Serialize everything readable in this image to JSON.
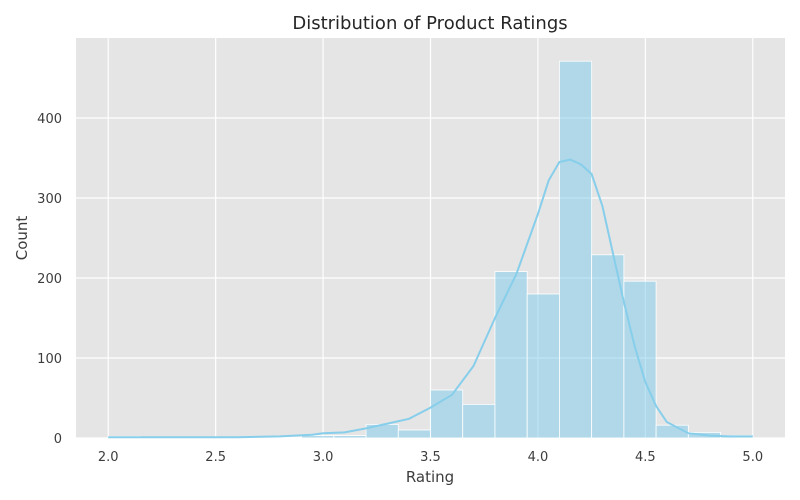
{
  "chart_data": {
    "type": "bar",
    "subtype": "histogram-with-kde",
    "title": "Distribution of Product Ratings",
    "xlabel": "Rating",
    "ylabel": "Count",
    "xlim": [
      1.85,
      5.15
    ],
    "ylim": [
      0,
      500
    ],
    "x_ticks": [
      2.0,
      2.5,
      3.0,
      3.5,
      4.0,
      4.5,
      5.0
    ],
    "x_tick_labels": [
      "2.0",
      "2.5",
      "3.0",
      "3.5",
      "4.0",
      "4.5",
      "5.0"
    ],
    "y_ticks": [
      0,
      100,
      200,
      300,
      400
    ],
    "y_tick_labels": [
      "0",
      "100",
      "200",
      "300",
      "400"
    ],
    "grid": true,
    "bin_edges": [
      2.0,
      2.15,
      2.3,
      2.45,
      2.6,
      2.75,
      2.9,
      3.05,
      3.2,
      3.35,
      3.5,
      3.65,
      3.8,
      3.95,
      4.1,
      4.25,
      4.4,
      4.55,
      4.7,
      4.85,
      5.0
    ],
    "counts": [
      2,
      1,
      1,
      1,
      1,
      1,
      3,
      3,
      17,
      10,
      60,
      42,
      208,
      180,
      471,
      229,
      196,
      16,
      7,
      3
    ],
    "kde": {
      "x": [
        2.0,
        2.2,
        2.4,
        2.6,
        2.8,
        2.95,
        3.0,
        3.1,
        3.2,
        3.3,
        3.4,
        3.5,
        3.6,
        3.7,
        3.8,
        3.9,
        4.0,
        4.05,
        4.1,
        4.15,
        4.2,
        4.25,
        4.3,
        4.35,
        4.4,
        4.45,
        4.5,
        4.55,
        4.6,
        4.7,
        4.8,
        4.9,
        5.0
      ],
      "y": [
        1,
        1,
        1,
        1,
        2,
        4,
        6,
        7,
        12,
        18,
        24,
        38,
        54,
        90,
        150,
        205,
        280,
        322,
        345,
        348,
        342,
        330,
        290,
        230,
        170,
        115,
        70,
        40,
        20,
        6,
        3,
        2,
        2
      ]
    },
    "colors": {
      "bar": "#87ceeb",
      "kde": "#87ceeb",
      "plot_bg": "#e5e5e5",
      "grid": "#ffffff"
    }
  }
}
